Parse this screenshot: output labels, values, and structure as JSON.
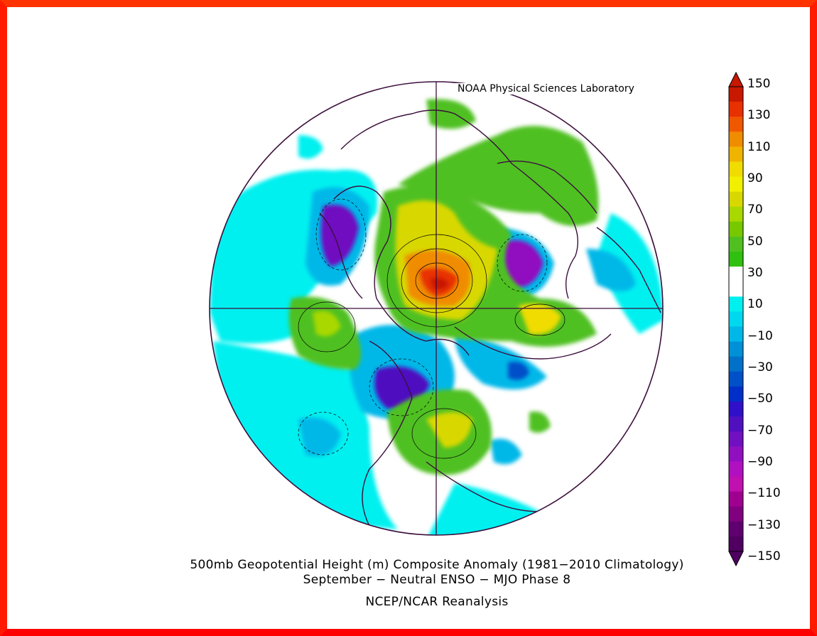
{
  "credit": "NOAA Physical Sciences Laboratory",
  "title_line1": "500mb Geopotential Height (m) Composite Anomaly (1981−2010 Climatology)",
  "title_line2": "September − Neutral ENSO − MJO Phase 8",
  "source": "NCEP/NCAR Reanalysis",
  "colorbar": {
    "labels": [
      "150",
      "130",
      "110",
      "90",
      "70",
      "50",
      "30",
      "10",
      "−10",
      "−30",
      "−50",
      "−70",
      "−90",
      "−110",
      "−130",
      "−150"
    ],
    "colors": [
      "#c81800",
      "#e83000",
      "#f05800",
      "#f08c00",
      "#f0b400",
      "#f0dc00",
      "#f0f000",
      "#d8d800",
      "#a8d800",
      "#78c800",
      "#50c020",
      "#30c010",
      "#ffffff",
      "#ffffff",
      "#00f0f0",
      "#00d8f0",
      "#00b8e8",
      "#0090d8",
      "#0070c8",
      "#0050c8",
      "#0030c8",
      "#3010c8",
      "#5010c0",
      "#7010c0",
      "#9010c0",
      "#b010c0",
      "#c010b0",
      "#a00090",
      "#800080",
      "#600070",
      "#500060"
    ],
    "units": "m"
  },
  "projection": "north-polar-stereographic",
  "colors": {
    "frame": "#ff1a00",
    "coast": "#3c0f3c",
    "positive_max": "#c81800",
    "negative_max": "#7010c0",
    "near_zero": "#ffffff"
  }
}
